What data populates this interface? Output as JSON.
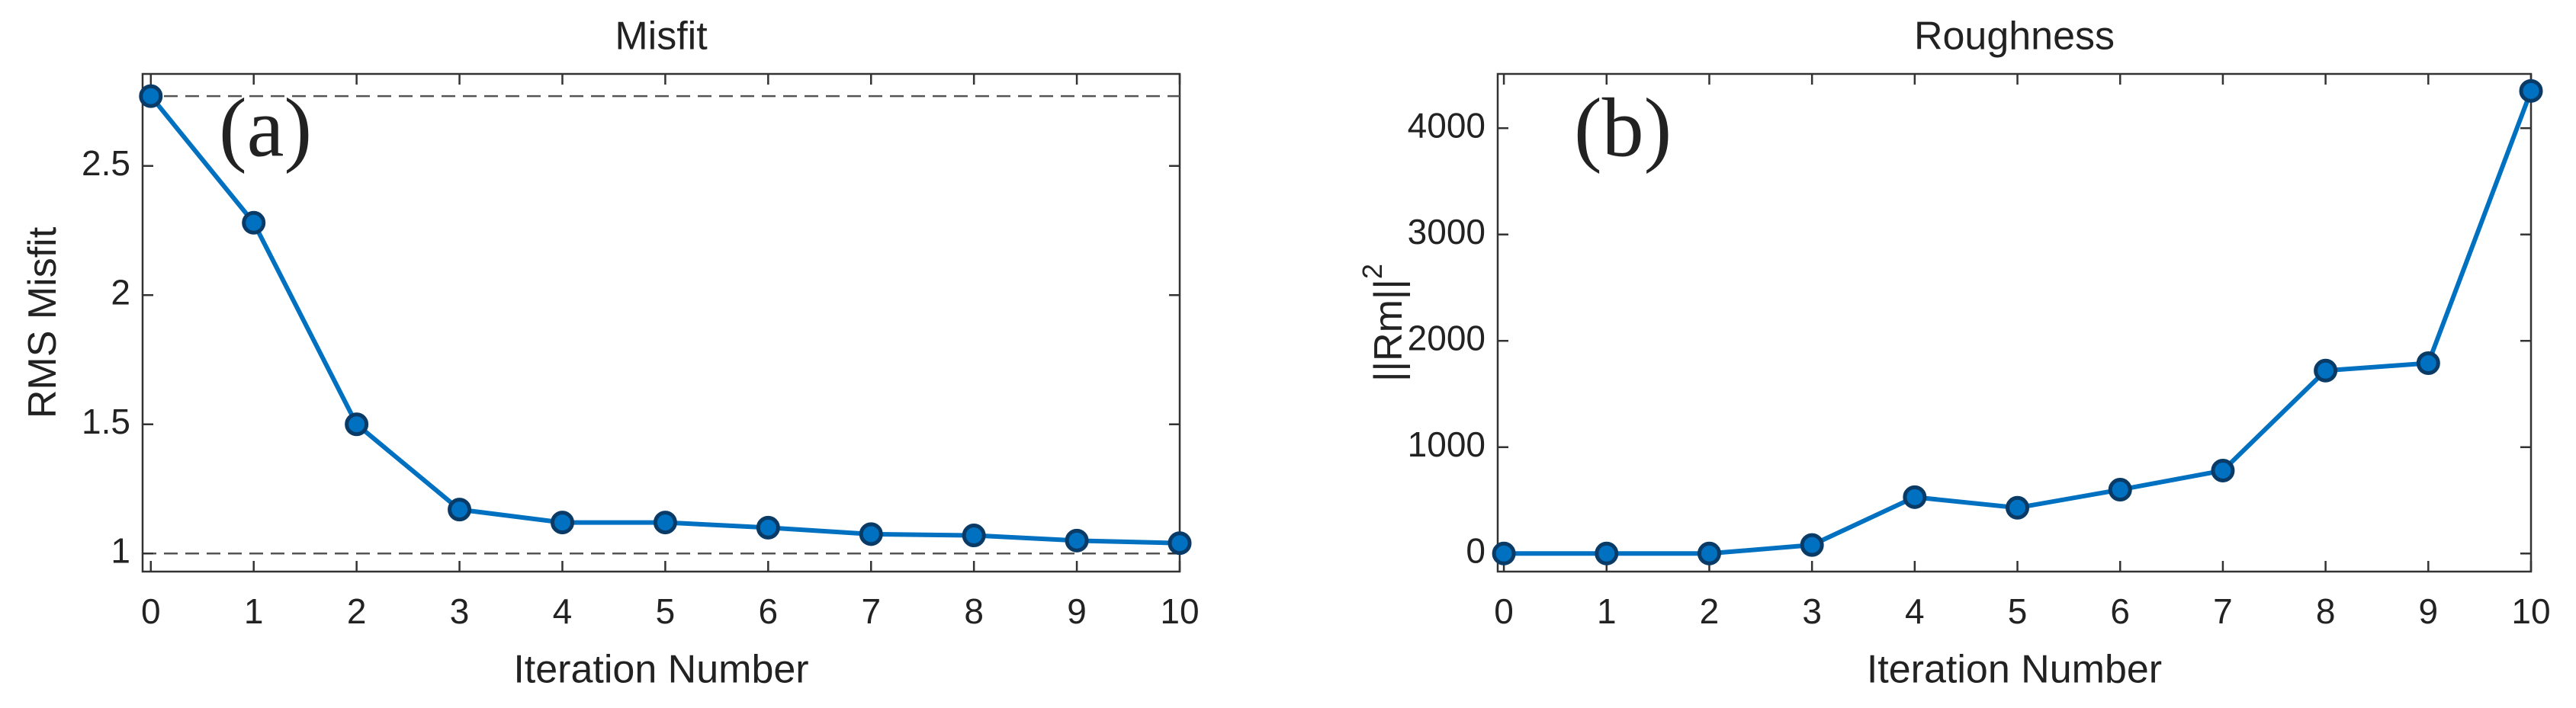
{
  "chart_data": [
    {
      "type": "line",
      "title": "Misfit",
      "xlabel": "Iteration Number",
      "ylabel": "RMS Misfit",
      "annotation": "(a)",
      "x": [
        0,
        1,
        2,
        3,
        4,
        5,
        6,
        7,
        8,
        9,
        10
      ],
      "values": [
        2.77,
        2.28,
        1.5,
        1.17,
        1.12,
        1.12,
        1.1,
        1.075,
        1.07,
        1.05,
        1.04
      ],
      "color": "#0070c0",
      "hlines": [
        2.77,
        1
      ],
      "xlim": [
        -0.08,
        10
      ],
      "xticks": [
        0,
        1,
        2,
        3,
        4,
        5,
        6,
        7,
        8,
        9,
        10
      ],
      "ylim": [
        0.93,
        2.856
      ],
      "yticks": [
        1,
        1.5,
        2,
        2.5
      ]
    },
    {
      "type": "line",
      "title": "Roughness",
      "xlabel": "Iteration Number",
      "ylabel": "||Rm||",
      "ylabel_power": "2",
      "annotation": "(b)",
      "x": [
        0,
        1,
        2,
        3,
        4,
        5,
        6,
        7,
        8,
        9,
        10
      ],
      "values": [
        0,
        0,
        0,
        80,
        530,
        430,
        600,
        780,
        1720,
        1790,
        4350
      ],
      "color": "#0070c0",
      "xlim": [
        -0.06,
        10
      ],
      "xticks": [
        0,
        1,
        2,
        3,
        4,
        5,
        6,
        7,
        8,
        9,
        10
      ],
      "ylim": [
        -170,
        4510
      ],
      "yticks": [
        0,
        1000,
        2000,
        3000,
        4000
      ]
    }
  ]
}
